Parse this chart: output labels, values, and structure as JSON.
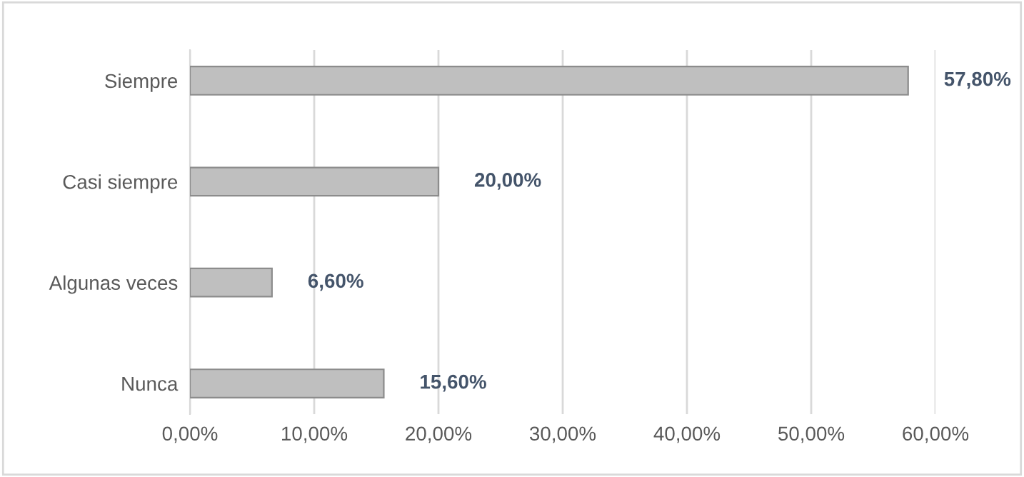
{
  "chart_data": {
    "type": "bar",
    "orientation": "horizontal",
    "categories": [
      "Siempre",
      "Casi siempre",
      "Algunas veces",
      "Nunca"
    ],
    "values": [
      57.8,
      20.0,
      6.6,
      15.6
    ],
    "value_labels": [
      "57,80%",
      "20,00%",
      "6,60%",
      "15,60%"
    ],
    "color": "#bfbfbf",
    "xlim": [
      0,
      60
    ],
    "xticks": [
      {
        "value": 0,
        "label": "0,00%"
      },
      {
        "value": 10,
        "label": "10,00%"
      },
      {
        "value": 20,
        "label": "20,00%"
      },
      {
        "value": 30,
        "label": "30,00%"
      },
      {
        "value": 40,
        "label": "40,00%"
      },
      {
        "value": 50,
        "label": "50,00%"
      },
      {
        "value": 60,
        "label": "60,00%"
      }
    ],
    "grid": "x",
    "legend": false
  }
}
